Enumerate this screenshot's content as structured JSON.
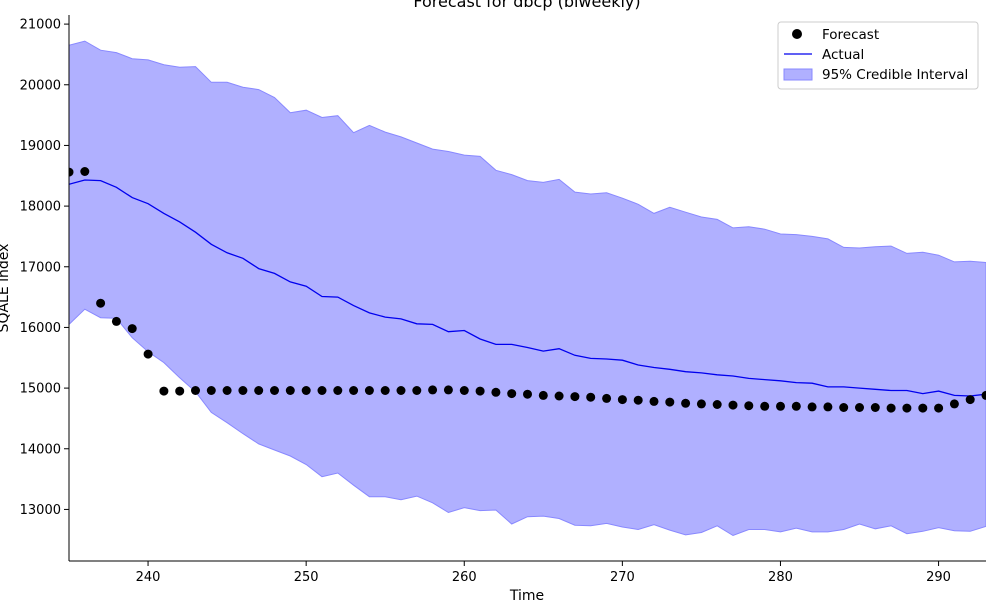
{
  "chart_data": {
    "type": "line",
    "title": "Forecast for dbcp (biweekly)",
    "xlabel": "Time",
    "ylabel": "SQALE index",
    "xlim": [
      235,
      293
    ],
    "ylim": [
      12150,
      21150
    ],
    "xticks": [
      240,
      250,
      260,
      270,
      280,
      290
    ],
    "yticks": [
      13000,
      14000,
      15000,
      16000,
      17000,
      18000,
      19000,
      20000,
      21000
    ],
    "grid": false,
    "legend_position": "top-right",
    "colors": {
      "forecast": "#000000",
      "actual": "#0000ee",
      "interval_fill": "#b0b0ff",
      "interval_edge": "#8888ff"
    },
    "series": [
      {
        "name": "Forecast",
        "kind": "scatter",
        "x": [
          235,
          236,
          237,
          238,
          239,
          240,
          241,
          242,
          243,
          244,
          245,
          246,
          247,
          248,
          249,
          250,
          251,
          252,
          253,
          254,
          255,
          256,
          257,
          258,
          259,
          260,
          261,
          262,
          263,
          264,
          265,
          266,
          267,
          268,
          269,
          270,
          271,
          272,
          273,
          274,
          275,
          276,
          277,
          278,
          279,
          280,
          281,
          282,
          283,
          284,
          285,
          286,
          287,
          288,
          289,
          290,
          291,
          292,
          293
        ],
        "y": [
          18560,
          18570,
          16400,
          16100,
          15980,
          15560,
          14950,
          14950,
          14960,
          14960,
          14960,
          14960,
          14960,
          14960,
          14960,
          14960,
          14960,
          14960,
          14960,
          14960,
          14960,
          14960,
          14960,
          14970,
          14970,
          14960,
          14950,
          14930,
          14910,
          14900,
          14880,
          14870,
          14860,
          14850,
          14830,
          14810,
          14800,
          14780,
          14770,
          14750,
          14740,
          14730,
          14720,
          14710,
          14700,
          14700,
          14700,
          14690,
          14690,
          14680,
          14680,
          14680,
          14670,
          14670,
          14670,
          14670,
          14740,
          14810,
          14880
        ]
      },
      {
        "name": "Actual",
        "kind": "line",
        "x": [
          235,
          236,
          237,
          238,
          239,
          240,
          241,
          242,
          243,
          244,
          245,
          246,
          247,
          248,
          249,
          250,
          251,
          252,
          253,
          254,
          255,
          256,
          257,
          258,
          259,
          260,
          261,
          262,
          263,
          264,
          265,
          266,
          267,
          268,
          269,
          270,
          271,
          272,
          273,
          274,
          275,
          276,
          277,
          278,
          279,
          280,
          281,
          282,
          283,
          284,
          285,
          286,
          287,
          288,
          289,
          290,
          291,
          292,
          293
        ],
        "y": [
          18360,
          18430,
          18420,
          18310,
          18140,
          18040,
          17880,
          17740,
          17570,
          17370,
          17230,
          17140,
          16970,
          16890,
          16750,
          16680,
          16510,
          16500,
          16360,
          16240,
          16170,
          16140,
          16060,
          16050,
          15930,
          15950,
          15810,
          15720,
          15720,
          15670,
          15610,
          15650,
          15540,
          15490,
          15480,
          15460,
          15380,
          15340,
          15310,
          15270,
          15250,
          15220,
          15200,
          15160,
          15140,
          15120,
          15090,
          15080,
          15020,
          15020,
          15000,
          14980,
          14960,
          14960,
          14910,
          14950,
          14880,
          14870,
          14900
        ]
      },
      {
        "name": "95% Credible Interval",
        "kind": "band",
        "x": [
          235,
          236,
          237,
          238,
          239,
          240,
          241,
          242,
          243,
          244,
          245,
          246,
          247,
          248,
          249,
          250,
          251,
          252,
          253,
          254,
          255,
          256,
          257,
          258,
          259,
          260,
          261,
          262,
          263,
          264,
          265,
          266,
          267,
          268,
          269,
          270,
          271,
          272,
          273,
          274,
          275,
          276,
          277,
          278,
          279,
          280,
          281,
          282,
          283,
          284,
          285,
          286,
          287,
          288,
          289,
          290,
          291,
          292,
          293
        ],
        "upper": [
          20650,
          20720,
          20570,
          20530,
          20430,
          20410,
          20330,
          20290,
          20300,
          20040,
          20040,
          19960,
          19920,
          19790,
          19540,
          19580,
          19460,
          19490,
          19210,
          19330,
          19220,
          19140,
          19040,
          18940,
          18900,
          18840,
          18820,
          18590,
          18520,
          18420,
          18390,
          18440,
          18230,
          18200,
          18220,
          18130,
          18030,
          17880,
          17980,
          17900,
          17820,
          17780,
          17640,
          17660,
          17620,
          17540,
          17530,
          17500,
          17460,
          17320,
          17310,
          17330,
          17340,
          17220,
          17240,
          17190,
          17080,
          17090,
          17070
        ],
        "lower": [
          16050,
          16300,
          16160,
          16150,
          15830,
          15600,
          15420,
          15170,
          14940,
          14600,
          14430,
          14250,
          14080,
          13980,
          13880,
          13740,
          13540,
          13600,
          13400,
          13210,
          13210,
          13160,
          13220,
          13110,
          12950,
          13030,
          12980,
          12990,
          12760,
          12880,
          12890,
          12850,
          12740,
          12730,
          12770,
          12710,
          12670,
          12750,
          12660,
          12580,
          12620,
          12730,
          12570,
          12670,
          12670,
          12630,
          12690,
          12630,
          12630,
          12670,
          12760,
          12680,
          12730,
          12600,
          12640,
          12700,
          12650,
          12640,
          12720
        ]
      }
    ]
  }
}
